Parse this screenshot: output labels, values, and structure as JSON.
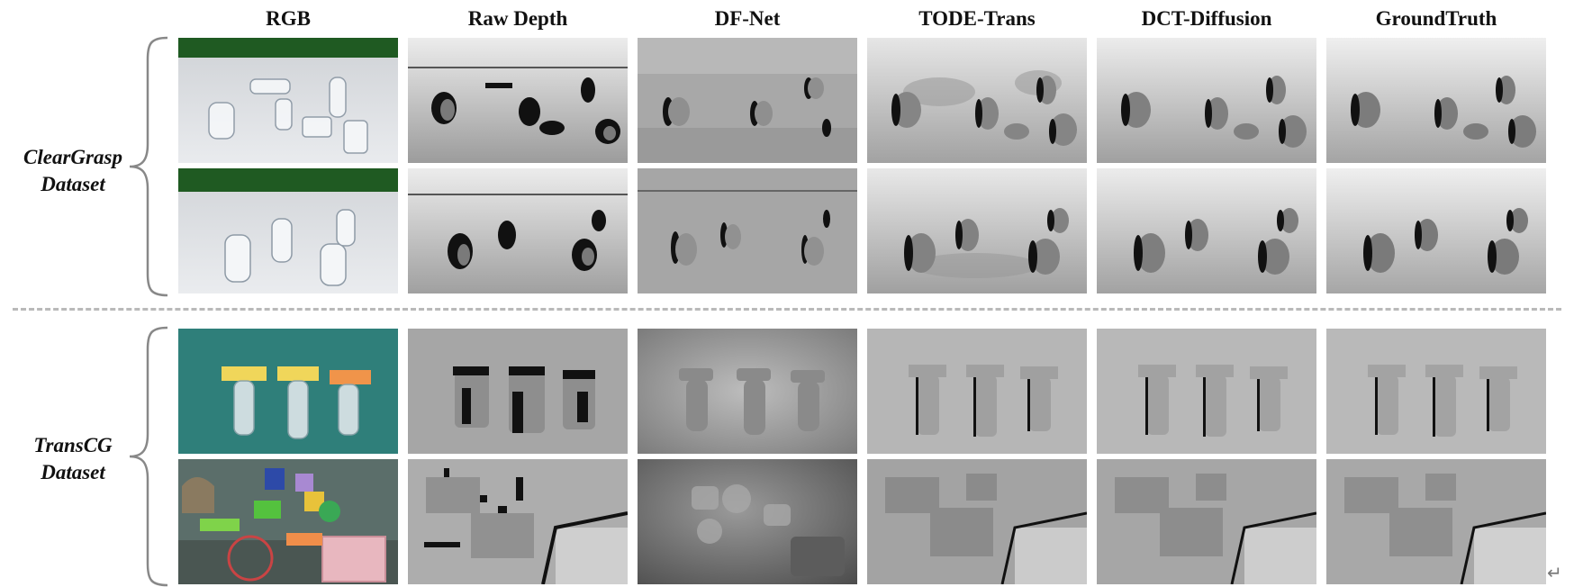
{
  "figure": {
    "columns": [
      "RGB",
      "Raw Depth",
      "DF-Net",
      "TODE-Trans",
      "DCT-Diffusion",
      "GroundTruth"
    ],
    "datasets": [
      {
        "line1": "ClearGrasp",
        "line2": "Dataset"
      },
      {
        "line1": "TransCG",
        "line2": "Dataset"
      }
    ],
    "return_mark": "↵"
  }
}
